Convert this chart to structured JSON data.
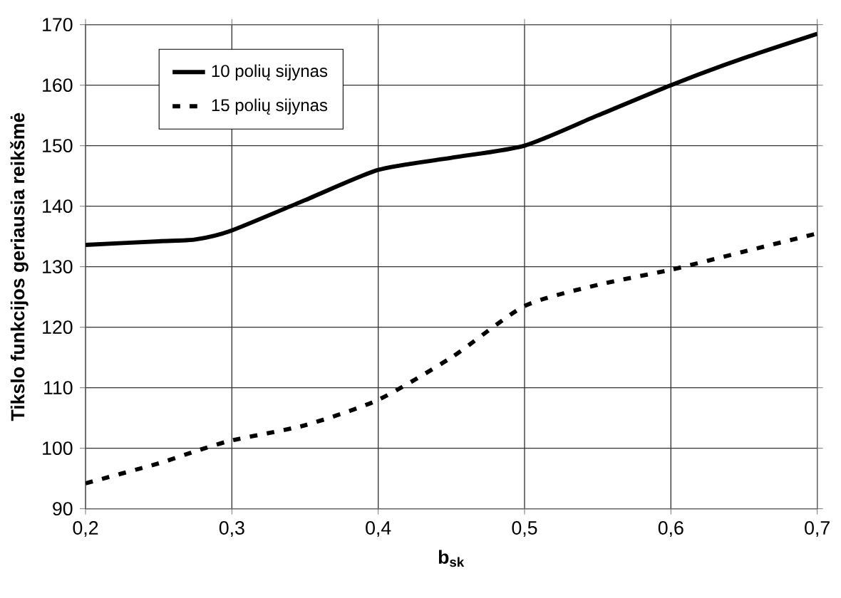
{
  "chart_data": {
    "type": "line",
    "xlabel": "b$_{sk}$",
    "ylabel": "Tikslo funkcijos geriausia reikšmė",
    "x": [
      0.2,
      0.25,
      0.275,
      0.3,
      0.35,
      0.4,
      0.45,
      0.5,
      0.55,
      0.6,
      0.65,
      0.7
    ],
    "series": [
      {
        "name": "10 polių sijynas",
        "color": "#000000",
        "line_style": "solid",
        "values": [
          133.6,
          134.2,
          134.5,
          136,
          141,
          146,
          148,
          150,
          155,
          160,
          164.5,
          168.5
        ]
      },
      {
        "name": "15 polių sijynas",
        "color": "#000000",
        "line_style": "dashed",
        "values": [
          94.2,
          97.5,
          99.5,
          101.3,
          103.8,
          108,
          115,
          123.5,
          127,
          129.5,
          132.5,
          135.5
        ]
      }
    ],
    "xlim": [
      0.2,
      0.7
    ],
    "ylim": [
      90,
      170
    ],
    "xticks": [
      {
        "value": 0.2,
        "label": "0,2"
      },
      {
        "value": 0.3,
        "label": "0,3"
      },
      {
        "value": 0.4,
        "label": "0,4"
      },
      {
        "value": 0.5,
        "label": "0,5"
      },
      {
        "value": 0.6,
        "label": "0,6"
      },
      {
        "value": 0.7,
        "label": "0,7"
      }
    ],
    "yticks": [
      90,
      100,
      110,
      120,
      130,
      140,
      150,
      160,
      170
    ],
    "grid": true,
    "legend": "top left",
    "marker": "none"
  }
}
